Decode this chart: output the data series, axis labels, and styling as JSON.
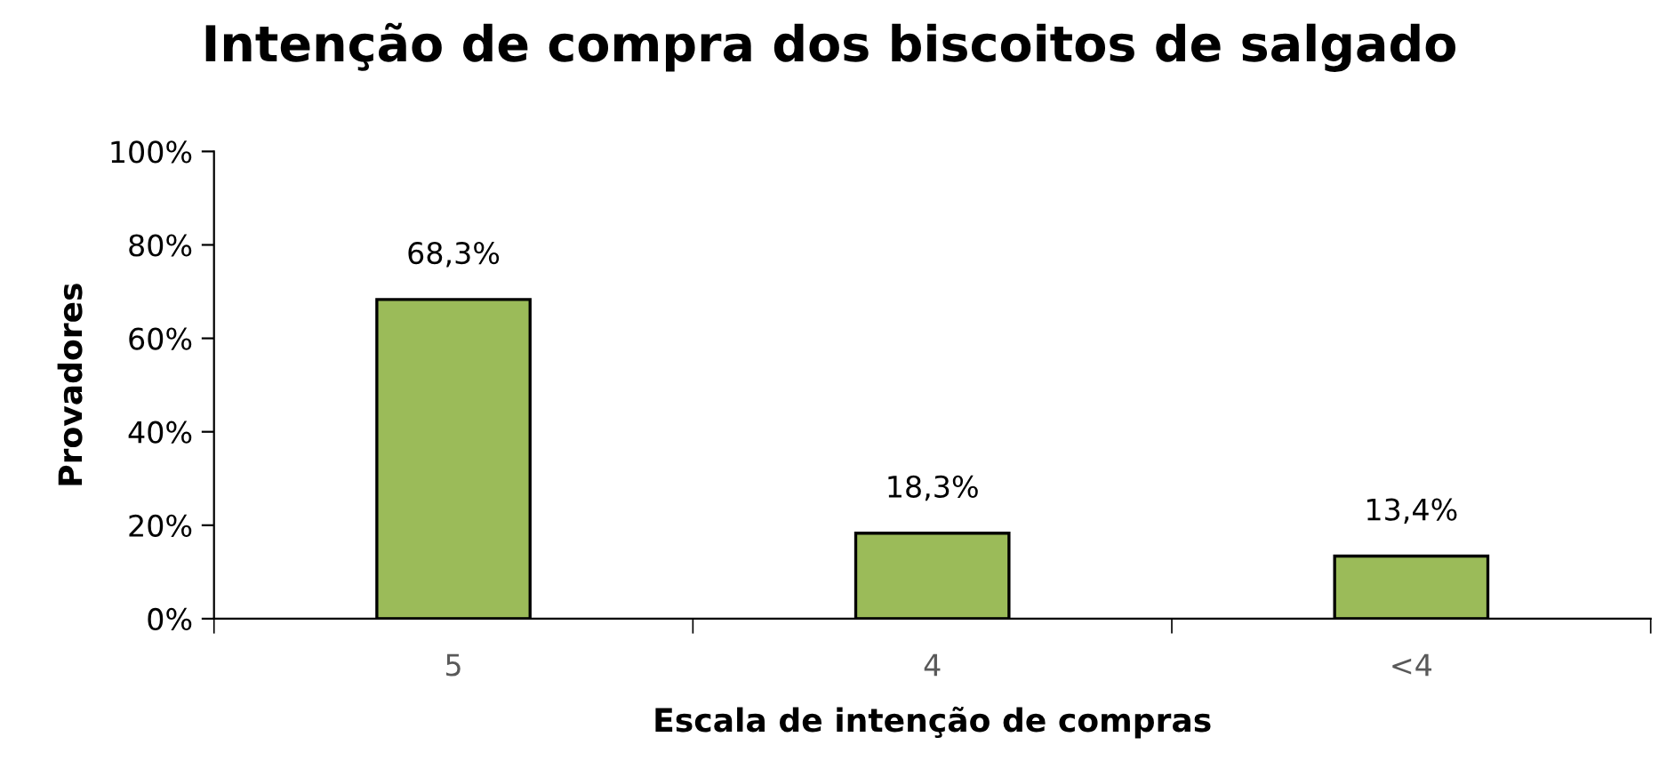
{
  "chart_data": {
    "type": "bar",
    "title": "Intenção de compra dos biscoitos de salgado",
    "xlabel": "Escala de intenção de compras",
    "ylabel": "Provadores",
    "categories": [
      "5",
      "4",
      "<4"
    ],
    "values": [
      68.3,
      18.3,
      13.4
    ],
    "value_labels": [
      "68,3%",
      "18,3%",
      "13,4%"
    ],
    "color": "#9bbb59",
    "ylim": [
      0,
      100
    ],
    "yticks": [
      {
        "value": 0,
        "label": "0%"
      },
      {
        "value": 20,
        "label": "20%"
      },
      {
        "value": 40,
        "label": "40%"
      },
      {
        "value": 60,
        "label": "60%"
      },
      {
        "value": 80,
        "label": "80%"
      },
      {
        "value": 100,
        "label": "100%"
      }
    ],
    "grid": false,
    "legend": false
  }
}
